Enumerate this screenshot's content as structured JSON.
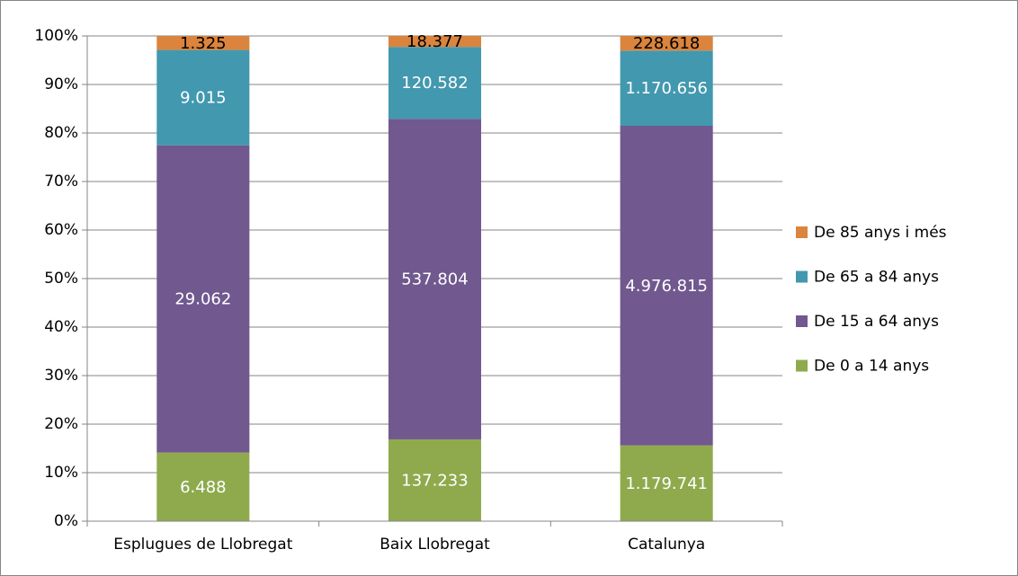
{
  "chart_data": {
    "type": "stacked_bar",
    "stack": "percent",
    "categories": [
      "Esplugues de Llobregat",
      "Baix Llobregat",
      "Catalunya"
    ],
    "series": [
      {
        "name": "De 0 a 14 anys",
        "color": "#8faa4d",
        "label_color": "#ffffff",
        "values": [
          6488,
          137233,
          1179741
        ],
        "value_labels": [
          "6.488",
          "137.233",
          "1.179.741"
        ]
      },
      {
        "name": "De 15 a 64 anys",
        "color": "#71588f",
        "label_color": "#ffffff",
        "values": [
          29062,
          537804,
          4976815
        ],
        "value_labels": [
          "29.062",
          "537.804",
          "4.976.815"
        ]
      },
      {
        "name": "De 65 a 84 anys",
        "color": "#4298af",
        "label_color": "#ffffff",
        "values": [
          9015,
          120582,
          1170656
        ],
        "value_labels": [
          "9.015",
          "120.582",
          "1.170.656"
        ]
      },
      {
        "name": "De 85 anys i més",
        "color": "#db843d",
        "label_color": "#000000",
        "values": [
          1325,
          18377,
          228618
        ],
        "value_labels": [
          "1.325",
          "18.377",
          "228.618"
        ]
      }
    ],
    "ylim": [
      0,
      100
    ],
    "yticks": [
      {
        "value": 0,
        "label": "0%"
      },
      {
        "value": 10,
        "label": "10%"
      },
      {
        "value": 20,
        "label": "20%"
      },
      {
        "value": 30,
        "label": "30%"
      },
      {
        "value": 40,
        "label": "40%"
      },
      {
        "value": 50,
        "label": "50%"
      },
      {
        "value": 60,
        "label": "60%"
      },
      {
        "value": 70,
        "label": "70%"
      },
      {
        "value": 80,
        "label": "80%"
      },
      {
        "value": 90,
        "label": "90%"
      },
      {
        "value": 100,
        "label": "100%"
      }
    ],
    "grid": true,
    "legend": "right"
  }
}
